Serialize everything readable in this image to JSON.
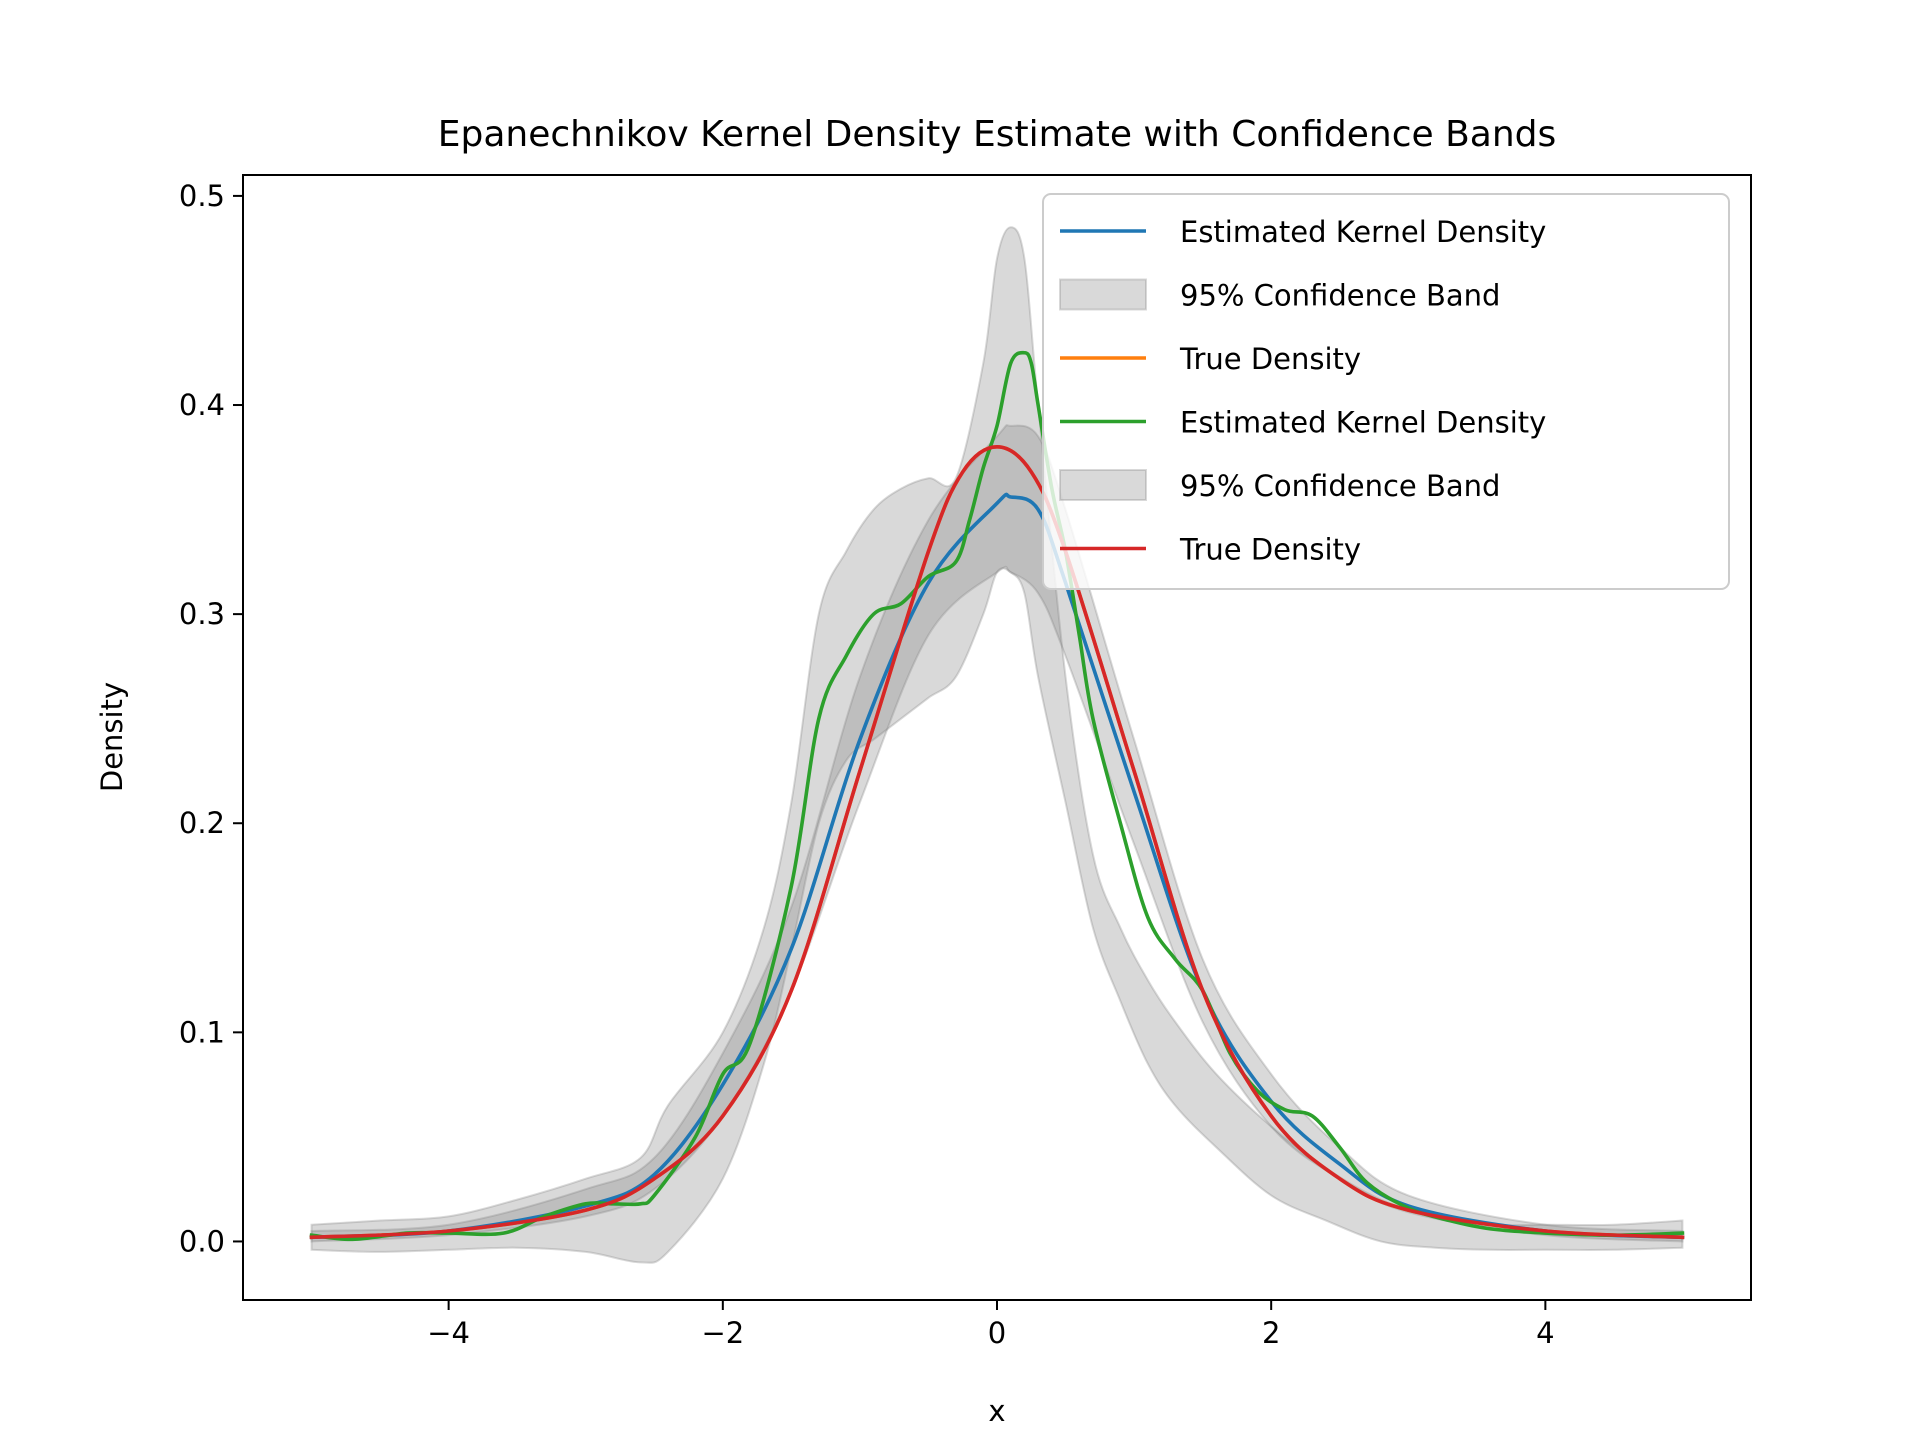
{
  "chart_data": {
    "type": "line",
    "title": "Epanechnikov Kernel Density Estimate with Confidence Bands",
    "xlabel": "x",
    "ylabel": "Density",
    "xlim": [
      -5.5,
      5.5
    ],
    "ylim": [
      -0.028,
      0.51
    ],
    "xticks": [
      -4,
      -2,
      0,
      2,
      4
    ],
    "xtick_labels": [
      "−4",
      "−2",
      "0",
      "2",
      "4"
    ],
    "yticks": [
      0.0,
      0.1,
      0.2,
      0.3,
      0.4,
      0.5
    ],
    "ytick_labels": [
      "0.0",
      "0.1",
      "0.2",
      "0.3",
      "0.4",
      "0.5"
    ],
    "grid": false,
    "legend_position": "top-right",
    "legend": [
      {
        "label": "Estimated Kernel Density",
        "kind": "line",
        "color": "#1f77b4"
      },
      {
        "label": "95% Confidence Band",
        "kind": "patch",
        "color": "#808080"
      },
      {
        "label": "True Density",
        "kind": "line",
        "color": "#ff7f0e"
      },
      {
        "label": "Estimated Kernel Density",
        "kind": "line",
        "color": "#2ca02c"
      },
      {
        "label": "95% Confidence Band",
        "kind": "patch",
        "color": "#808080"
      },
      {
        "label": "True Density",
        "kind": "line",
        "color": "#d62728"
      }
    ],
    "bands": [
      {
        "name": "95% Confidence Band (wide)",
        "color": "#808080",
        "x": [
          -5.0,
          -4.5,
          -4.0,
          -3.5,
          -3.0,
          -2.6,
          -2.4,
          -2.0,
          -1.7,
          -1.5,
          -1.3,
          -1.1,
          -0.9,
          -0.7,
          -0.5,
          -0.3,
          -0.1,
          0.0,
          0.1,
          0.2,
          0.3,
          0.5,
          0.7,
          0.9,
          1.1,
          1.3,
          1.6,
          2.0,
          2.4,
          2.8,
          3.2,
          3.6,
          4.0,
          4.5,
          5.0
        ],
        "lower": [
          -0.004,
          -0.005,
          -0.004,
          -0.003,
          -0.005,
          -0.01,
          -0.005,
          0.03,
          0.085,
          0.14,
          0.2,
          0.23,
          0.24,
          0.25,
          0.26,
          0.27,
          0.3,
          0.32,
          0.32,
          0.31,
          0.27,
          0.21,
          0.15,
          0.115,
          0.085,
          0.065,
          0.045,
          0.022,
          0.01,
          0.0,
          -0.003,
          -0.004,
          -0.004,
          -0.004,
          -0.003
        ],
        "upper": [
          0.008,
          0.01,
          0.012,
          0.02,
          0.03,
          0.04,
          0.065,
          0.1,
          0.15,
          0.21,
          0.3,
          0.33,
          0.35,
          0.36,
          0.365,
          0.365,
          0.42,
          0.47,
          0.485,
          0.47,
          0.4,
          0.27,
          0.185,
          0.15,
          0.125,
          0.105,
          0.08,
          0.055,
          0.035,
          0.02,
          0.012,
          0.008,
          0.008,
          0.008,
          0.01
        ]
      },
      {
        "name": "95% Confidence Band (narrow)",
        "color": "#808080",
        "x": [
          -5.0,
          -4.0,
          -3.0,
          -2.5,
          -2.0,
          -1.5,
          -1.0,
          -0.5,
          0.0,
          0.1,
          0.3,
          0.5,
          1.0,
          1.5,
          2.0,
          2.5,
          3.0,
          4.0,
          5.0
        ],
        "lower": [
          0.0,
          0.003,
          0.012,
          0.025,
          0.06,
          0.12,
          0.21,
          0.29,
          0.32,
          0.32,
          0.31,
          0.28,
          0.19,
          0.105,
          0.055,
          0.03,
          0.014,
          0.003,
          0.0
        ],
        "upper": [
          0.005,
          0.008,
          0.025,
          0.04,
          0.09,
          0.16,
          0.27,
          0.345,
          0.385,
          0.39,
          0.385,
          0.35,
          0.24,
          0.135,
          0.08,
          0.045,
          0.022,
          0.008,
          0.005
        ]
      }
    ],
    "series": [
      {
        "name": "True Density",
        "color": "#ff7f0e",
        "x": [
          -5.0,
          -4.0,
          -3.0,
          -2.5,
          -2.0,
          -1.5,
          -1.0,
          -0.5,
          -0.25,
          0.0,
          0.25,
          0.5,
          1.0,
          1.5,
          2.0,
          2.5,
          3.0,
          4.0,
          5.0
        ],
        "y": [
          0.002,
          0.005,
          0.015,
          0.03,
          0.06,
          0.12,
          0.225,
          0.33,
          0.368,
          0.38,
          0.368,
          0.33,
          0.225,
          0.12,
          0.06,
          0.03,
          0.015,
          0.005,
          0.002
        ]
      },
      {
        "name": "Estimated Kernel Density",
        "color": "#1f77b4",
        "x": [
          -5.0,
          -4.0,
          -3.0,
          -2.5,
          -2.0,
          -1.5,
          -1.0,
          -0.5,
          0.0,
          0.1,
          0.3,
          0.5,
          1.0,
          1.5,
          2.0,
          2.5,
          3.0,
          4.0,
          5.0
        ],
        "y": [
          0.002,
          0.005,
          0.017,
          0.032,
          0.075,
          0.14,
          0.24,
          0.315,
          0.353,
          0.356,
          0.35,
          0.315,
          0.215,
          0.12,
          0.067,
          0.037,
          0.017,
          0.005,
          0.002
        ]
      },
      {
        "name": "Estimated Kernel Density",
        "color": "#2ca02c",
        "x": [
          -5.0,
          -4.7,
          -4.3,
          -4.0,
          -3.6,
          -3.3,
          -3.0,
          -2.8,
          -2.6,
          -2.5,
          -2.2,
          -2.0,
          -1.8,
          -1.5,
          -1.3,
          -1.1,
          -0.9,
          -0.7,
          -0.5,
          -0.3,
          -0.2,
          -0.1,
          0.0,
          0.1,
          0.2,
          0.25,
          0.3,
          0.4,
          0.5,
          0.6,
          0.7,
          0.9,
          1.1,
          1.3,
          1.5,
          1.7,
          1.9,
          2.1,
          2.3,
          2.5,
          2.7,
          3.0,
          3.3,
          3.6,
          4.0,
          4.5,
          5.0
        ],
        "y": [
          0.003,
          0.001,
          0.004,
          0.004,
          0.004,
          0.012,
          0.018,
          0.018,
          0.018,
          0.022,
          0.05,
          0.08,
          0.095,
          0.17,
          0.25,
          0.28,
          0.3,
          0.305,
          0.318,
          0.325,
          0.345,
          0.37,
          0.39,
          0.42,
          0.425,
          0.42,
          0.4,
          0.36,
          0.33,
          0.29,
          0.25,
          0.2,
          0.155,
          0.135,
          0.12,
          0.09,
          0.072,
          0.063,
          0.06,
          0.045,
          0.028,
          0.016,
          0.01,
          0.006,
          0.004,
          0.003,
          0.004
        ]
      },
      {
        "name": "True Density",
        "color": "#d62728",
        "x": [
          -5.0,
          -4.0,
          -3.0,
          -2.5,
          -2.0,
          -1.5,
          -1.0,
          -0.5,
          -0.25,
          0.0,
          0.25,
          0.5,
          1.0,
          1.5,
          2.0,
          2.5,
          3.0,
          4.0,
          5.0
        ],
        "y": [
          0.002,
          0.005,
          0.015,
          0.03,
          0.06,
          0.12,
          0.225,
          0.33,
          0.368,
          0.38,
          0.368,
          0.33,
          0.225,
          0.12,
          0.06,
          0.03,
          0.015,
          0.005,
          0.002
        ]
      }
    ]
  }
}
